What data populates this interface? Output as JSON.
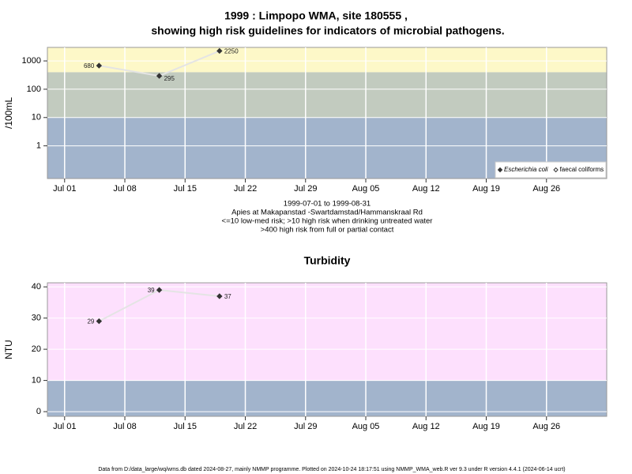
{
  "footer": "Data from D:/data_large/wq/wms.db dated 2024-08-27, mainly NMMP programme. Plotted on 2024-10-24 18:17:51 using NMMP_WMA_web.R ver 9.3 under R version 4.4.1 (2024-06-14 ucrt)",
  "chart_data": [
    {
      "type": "line",
      "title": "1999 : Limpopo WMA, site 180555 ,",
      "subtitle": "showing high risk guidelines for indicators of microbial pathogens.",
      "notes": [
        "1999-07-01 to 1999-08-31",
        "Apies at Makapanstad -Swartdamstad/Hammanskraal Rd",
        "<=10 low-med risk; >10 high risk when drinking untreated water",
        ">400 high risk from full or partial contact"
      ],
      "y_label": "/100mL",
      "log_y": true,
      "grid": true,
      "legend": "bottom-right",
      "x": [
        "1999-07-05",
        "1999-07-12",
        "1999-07-19"
      ],
      "series": [
        {
          "name": "Escherichia coli",
          "color": "#333333",
          "marker": "filled",
          "values": [
            680,
            295,
            2250
          ]
        },
        {
          "name": "faecal coliforms",
          "color": "#333333",
          "marker": "open",
          "values": [
            null,
            null,
            null
          ]
        }
      ],
      "bands": [
        {
          "from": 0.07,
          "to": 10,
          "color": "#a2b4cc"
        },
        {
          "from": 10,
          "to": 400,
          "color": "#c2cbbf"
        },
        {
          "from": 400,
          "to": 3000,
          "color": "#fdf8c8"
        }
      ],
      "xlim": [
        "1999-06-29",
        "1999-09-02"
      ],
      "xticks": [
        {
          "value": "1999-07-01",
          "label": "Jul 01"
        },
        {
          "value": "1999-07-08",
          "label": "Jul 08"
        },
        {
          "value": "1999-07-15",
          "label": "Jul 15"
        },
        {
          "value": "1999-07-22",
          "label": "Jul 22"
        },
        {
          "value": "1999-07-29",
          "label": "Jul 29"
        },
        {
          "value": "1999-08-05",
          "label": "Aug 05"
        },
        {
          "value": "1999-08-12",
          "label": "Aug 12"
        },
        {
          "value": "1999-08-19",
          "label": "Aug 19"
        },
        {
          "value": "1999-08-26",
          "label": "Aug 26"
        }
      ],
      "ylim": [
        0.07,
        3000
      ],
      "yticks": [
        1,
        10,
        100,
        1000
      ]
    },
    {
      "type": "line",
      "title": "Turbidity",
      "y_label": "NTU",
      "log_y": false,
      "grid": true,
      "x": [
        "1999-07-05",
        "1999-07-12",
        "1999-07-19"
      ],
      "series": [
        {
          "name": "Turbidity",
          "color": "#333333",
          "marker": "filled",
          "values": [
            29,
            39,
            37
          ]
        }
      ],
      "bands": [
        {
          "from": -1.5,
          "to": 10,
          "color": "#a2b4cc"
        },
        {
          "from": 10,
          "to": 41.3,
          "color": "#fde0fd"
        }
      ],
      "xlim": [
        "1999-06-29",
        "1999-09-02"
      ],
      "xticks": [
        {
          "value": "1999-07-01",
          "label": "Jul 01"
        },
        {
          "value": "1999-07-08",
          "label": "Jul 08"
        },
        {
          "value": "1999-07-15",
          "label": "Jul 15"
        },
        {
          "value": "1999-07-22",
          "label": "Jul 22"
        },
        {
          "value": "1999-07-29",
          "label": "Jul 29"
        },
        {
          "value": "1999-08-05",
          "label": "Aug 05"
        },
        {
          "value": "1999-08-12",
          "label": "Aug 12"
        },
        {
          "value": "1999-08-19",
          "label": "Aug 19"
        },
        {
          "value": "1999-08-26",
          "label": "Aug 26"
        }
      ],
      "ylim": [
        -1.5,
        41.3
      ],
      "yticks": [
        0,
        10,
        20,
        30,
        40
      ]
    }
  ]
}
